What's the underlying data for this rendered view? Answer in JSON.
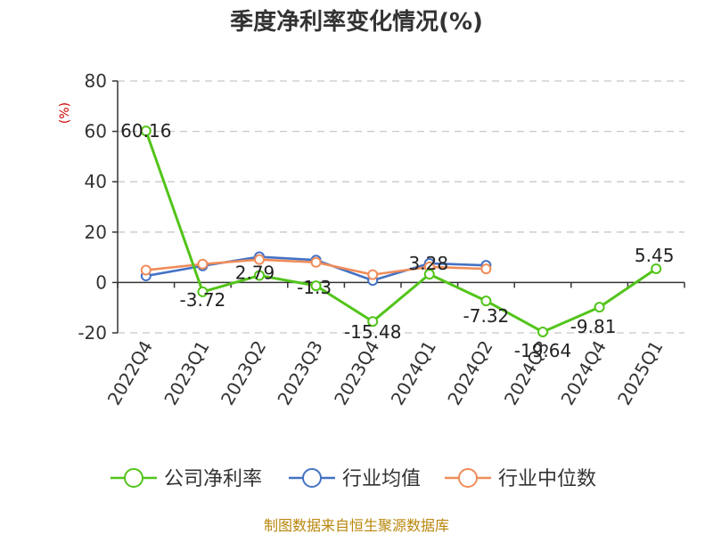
{
  "colors": {
    "company": "#52c41a",
    "industry_avg": "#4472c4",
    "industry_median": "#f08c5a",
    "grid": "#c8c8c8",
    "axis": "#333333",
    "unit": "#cc0000",
    "source": "#b8860b"
  },
  "source_text": "制图数据来自恒生聚源数据库",
  "chart_data": {
    "type": "line",
    "title": "季度净利率变化情况(%)",
    "ylabel": "(%)",
    "xlabel": "",
    "categories": [
      "2022Q4",
      "2023Q1",
      "2023Q2",
      "2023Q3",
      "2023Q4",
      "2024Q1",
      "2024Q2",
      "2024Q3",
      "2024Q4",
      "2025Q1"
    ],
    "ylim": [
      -20,
      80
    ],
    "yticks": [
      80,
      60,
      40,
      20,
      0,
      -20
    ],
    "grid": true,
    "legend_position": "bottom",
    "series": [
      {
        "name": "公司净利率",
        "color_key": "company",
        "values": [
          60.16,
          -3.72,
          2.79,
          -1.3,
          -15.48,
          3.28,
          -7.32,
          -19.64,
          -9.81,
          5.45
        ],
        "labels": [
          "60.16",
          "-3.72",
          "2.79",
          "-1.3",
          "-15.48",
          "3.28",
          "-7.32",
          "-19.64",
          "-9.81",
          "5.45"
        ]
      },
      {
        "name": "行业均值",
        "color_key": "industry_avg",
        "values": [
          2.6,
          6.6,
          10.2,
          8.9,
          0.8,
          7.6,
          6.8,
          null,
          null,
          null
        ]
      },
      {
        "name": "行业中位数",
        "color_key": "industry_median",
        "values": [
          4.9,
          7.3,
          9.1,
          8.0,
          3.1,
          6.2,
          5.4,
          null,
          null,
          null
        ]
      }
    ]
  }
}
